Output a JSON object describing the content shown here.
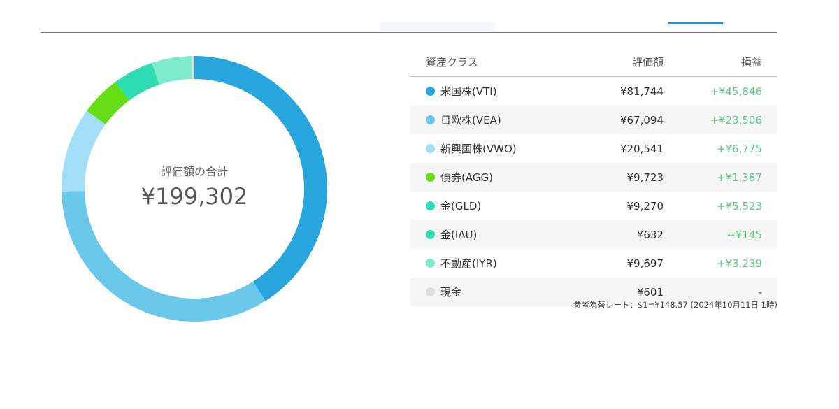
{
  "total_label": "評価額の合計",
  "total_value": "¥199,302",
  "headers": {
    "asset": "資産クラス",
    "value": "評価額",
    "pl": "損益"
  },
  "rows": [
    {
      "name": "米国株(VTI)",
      "value": "¥81,744",
      "pl": "+¥45,846",
      "color": "#27a5dd",
      "amount": 81744
    },
    {
      "name": "日欧株(VEA)",
      "value": "¥67,094",
      "pl": "+¥23,506",
      "color": "#6ac8eb",
      "amount": 67094
    },
    {
      "name": "新興国株(VWO)",
      "value": "¥20,541",
      "pl": "+¥6,775",
      "color": "#a2def8",
      "amount": 20541
    },
    {
      "name": "債券(AGG)",
      "value": "¥9,723",
      "pl": "+¥1,387",
      "color": "#66dd11",
      "amount": 9723
    },
    {
      "name": "金(GLD)",
      "value": "¥9,270",
      "pl": "+¥5,523",
      "color": "#2ddcb0",
      "amount": 9270
    },
    {
      "name": "金(IAU)",
      "value": "¥632",
      "pl": "+¥145",
      "color": "#2ddca8",
      "amount": 632
    },
    {
      "name": "不動産(IYR)",
      "value": "¥9,697",
      "pl": "+¥3,239",
      "color": "#7eebcf",
      "amount": 9697
    },
    {
      "name": "現金",
      "value": "¥601",
      "pl": "-",
      "color": "#dddddd",
      "amount": 601
    }
  ],
  "rate_note": "参考為替レート：$1=¥148.57 (2024年10月11日 1時)"
}
